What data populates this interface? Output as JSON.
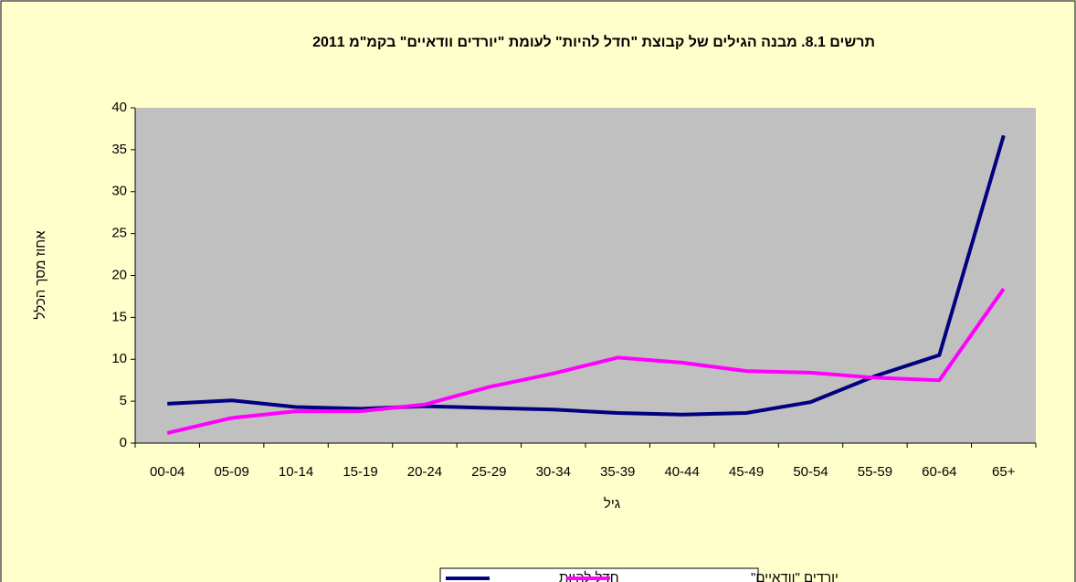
{
  "chart_data": {
    "type": "line",
    "title": "תרשים 8.1. מבנה הגילים של קבוצת \"חדל להיות\" לעומת \"יורדים וודאיים\" בקמ\"מ 2011",
    "x_label": "גיל",
    "y_label": "אחוז מסך הכלל",
    "categories": [
      "00-04",
      "05-09",
      "10-14",
      "15-19",
      "20-24",
      "25-29",
      "30-34",
      "35-39",
      "40-44",
      "45-49",
      "50-54",
      "55-59",
      "60-64",
      "65+"
    ],
    "series": [
      {
        "name": "חדל להיות",
        "color": "#000080",
        "values": [
          4.7,
          5.1,
          4.3,
          4.1,
          4.4,
          4.2,
          4.0,
          3.6,
          3.4,
          3.6,
          4.9,
          8.0,
          10.5,
          36.7
        ]
      },
      {
        "name": "יורדים \"וודאיים\"",
        "color": "#ff00ff",
        "values": [
          1.2,
          3.0,
          3.8,
          3.8,
          4.6,
          6.7,
          8.3,
          10.2,
          9.6,
          8.6,
          8.4,
          7.8,
          7.5,
          18.4
        ]
      }
    ],
    "ylim": [
      0,
      40
    ],
    "yticks": [
      0,
      5,
      10,
      15,
      20,
      25,
      30,
      35,
      40
    ],
    "legend": "bottom"
  }
}
